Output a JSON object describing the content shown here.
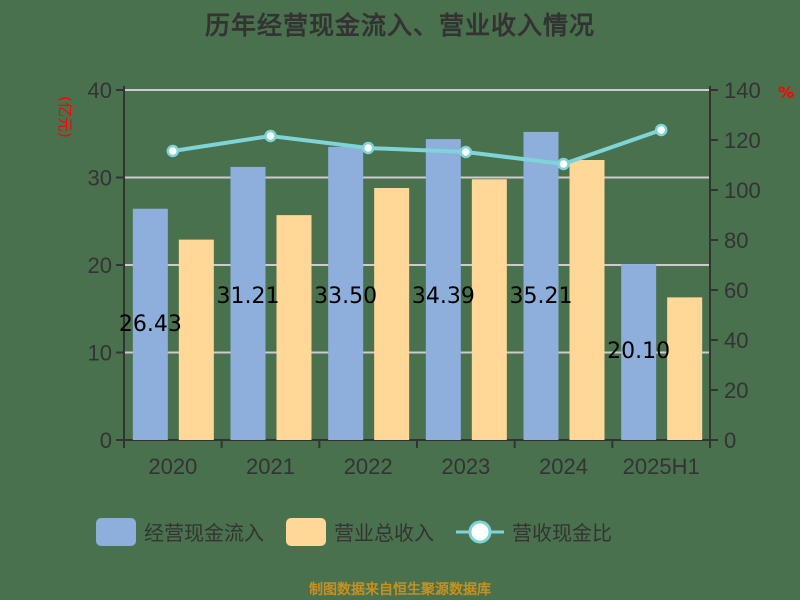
{
  "title": "历年经营现金流入、营业收入情况",
  "left_axis_unit": "(亿元)",
  "right_axis_unit": "%",
  "legend": [
    {
      "label": "经营现金流入",
      "color": "#8eaedb",
      "type": "bar"
    },
    {
      "label": "营业总收入",
      "color": "#ffd898",
      "type": "bar"
    },
    {
      "label": "营收现金比",
      "color": "#7fd4d8",
      "type": "line"
    }
  ],
  "source": "制图数据来自恒生聚源数据库",
  "chart_data": {
    "type": "bar",
    "title": "历年经营现金流入、营业收入情况",
    "categories": [
      "2020",
      "2021",
      "2022",
      "2023",
      "2024",
      "2025H1"
    ],
    "series": [
      {
        "name": "经营现金流入",
        "axis": "left",
        "type": "bar",
        "color": "#8eaedb",
        "values": [
          26.43,
          31.21,
          33.5,
          34.39,
          35.21,
          20.1
        ],
        "labels": [
          "26.43",
          "31.21",
          "33.50",
          "34.39",
          "35.21",
          "20.10"
        ]
      },
      {
        "name": "营业总收入",
        "axis": "left",
        "type": "bar",
        "color": "#ffd898",
        "values": [
          22.9,
          25.7,
          28.8,
          29.8,
          32.0,
          16.3
        ]
      },
      {
        "name": "营收现金比",
        "axis": "right",
        "type": "line",
        "color": "#7fd4d8",
        "values": [
          115.6,
          121.6,
          116.8,
          115.2,
          110.4,
          124.0
        ]
      }
    ],
    "ylabel": "(亿元)",
    "y2label": "%",
    "ylim": [
      0,
      40
    ],
    "y2lim": [
      0,
      140
    ],
    "yticks": [
      0,
      10,
      20,
      30,
      40
    ],
    "y2ticks": [
      0,
      20,
      40,
      60,
      80,
      100,
      120,
      140
    ],
    "grid": true,
    "legend_position": "bottom"
  }
}
